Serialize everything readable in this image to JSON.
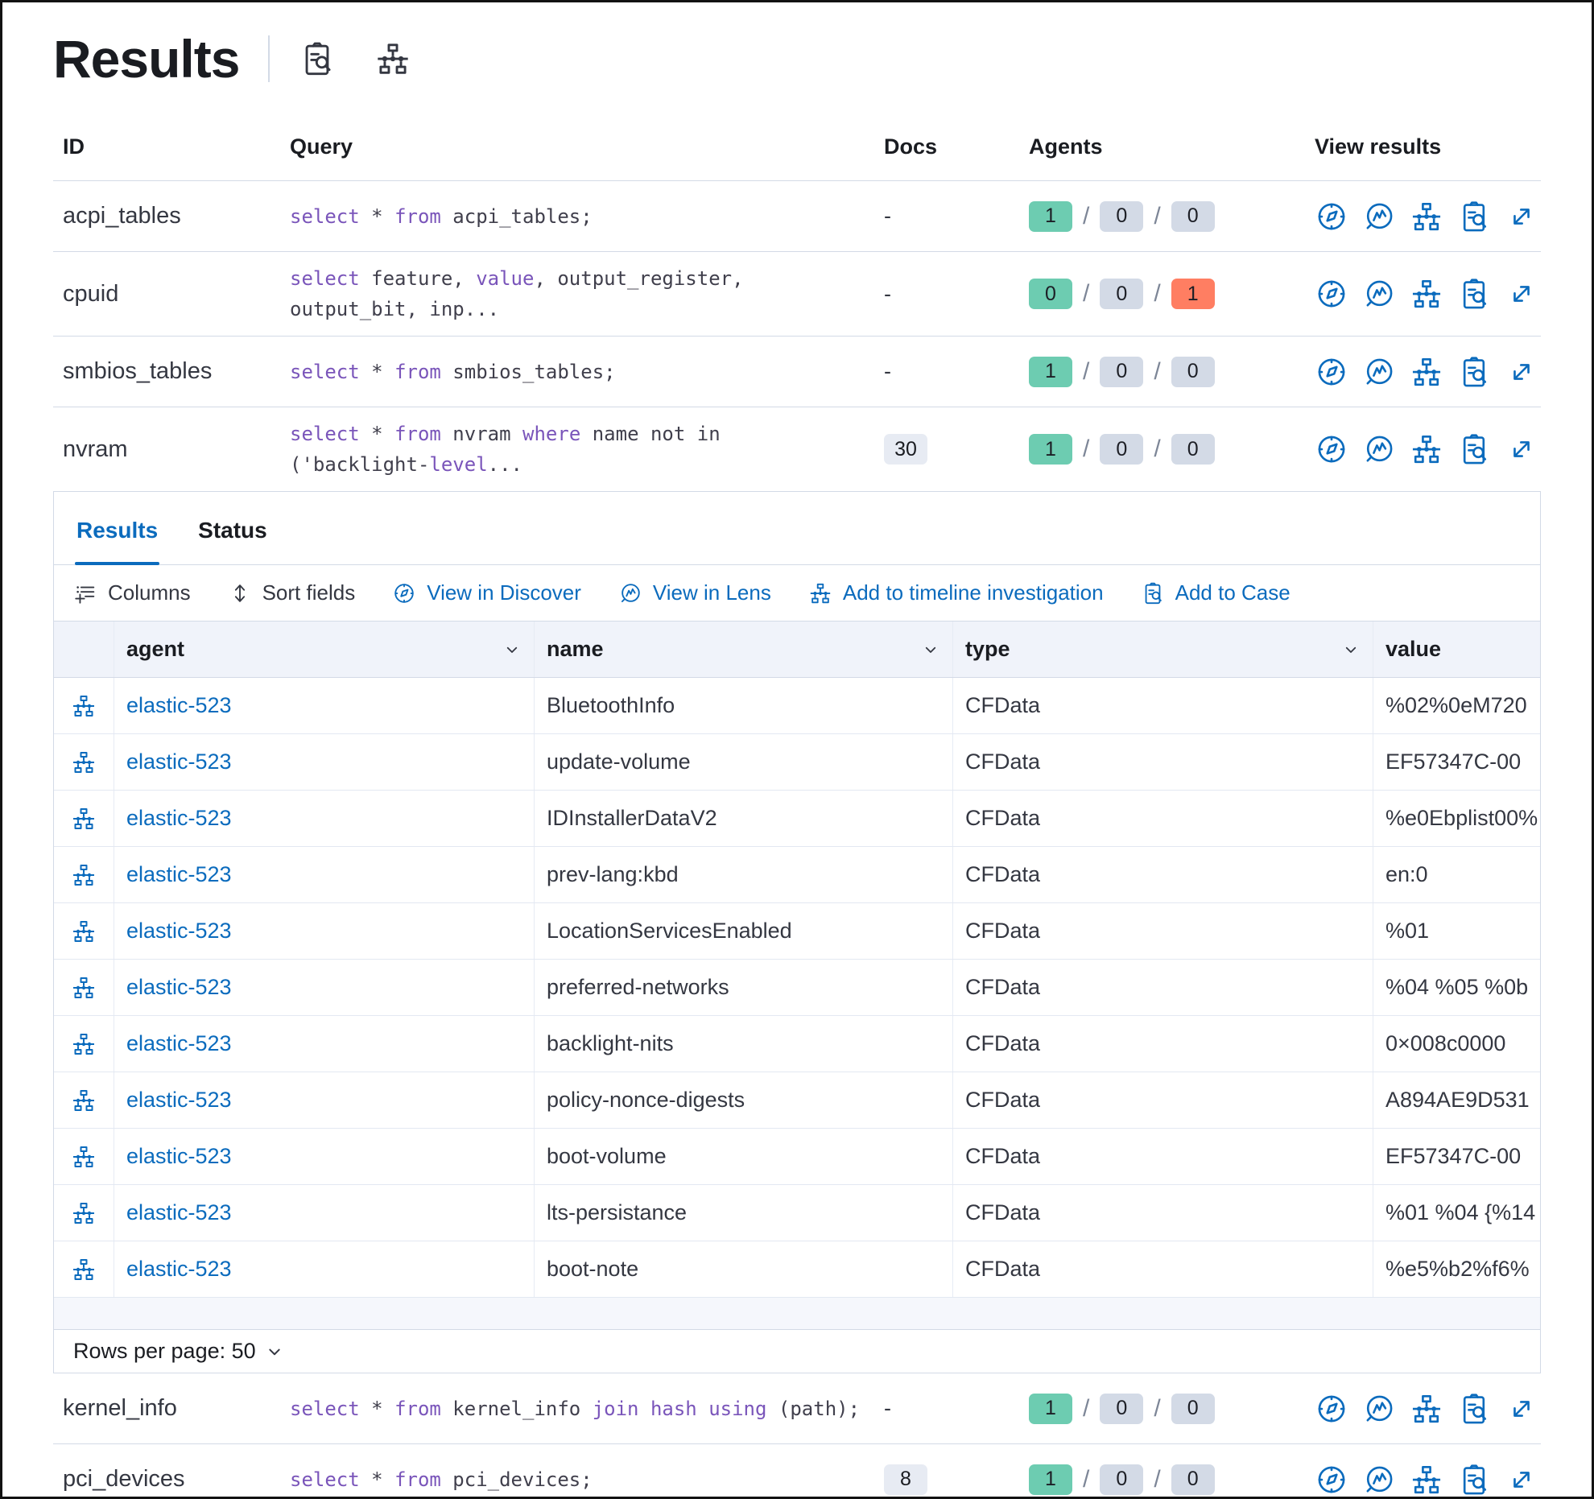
{
  "colors": {
    "primary": "#0b6bbd",
    "text": "#343741",
    "heading": "#1a1c21",
    "subdued": "#69707d",
    "border": "#d3dae6",
    "border_light": "#e3e8f2",
    "grid_header_bg": "#f0f3fa",
    "strip_bg": "#f5f7fc",
    "keyword": "#7a55ba",
    "badge_success": "#6dccb1",
    "badge_neutral": "#d3dae6",
    "badge_danger": "#ff7e62",
    "badge_docs_bg": "#e7ebf3"
  },
  "icon_symbols": {
    "case-icon": "inspect-icon"
  },
  "page": {
    "title": "Results",
    "title_icons": [
      "inspect-icon",
      "timeline-icon"
    ]
  },
  "results_table": {
    "columns": {
      "id": "ID",
      "query": "Query",
      "docs": "Docs",
      "agents": "Agents",
      "view": "View results"
    },
    "view_actions": [
      "discover-icon",
      "lens-icon",
      "timeline-icon",
      "inspect-icon",
      "expand-icon"
    ],
    "rows": [
      {
        "id": "acpi_tables",
        "query": [
          [
            {
              "t": "select",
              "kw": true
            },
            {
              "t": " * "
            },
            {
              "t": "from",
              "kw": true
            },
            {
              "t": " acpi_tables;"
            }
          ]
        ],
        "docs": {
          "text": "-",
          "badge": false
        },
        "agents": {
          "success": "1",
          "pending": "0",
          "failed": "0",
          "failed_alert": false
        },
        "expanded": false
      },
      {
        "id": "cpuid",
        "query": [
          [
            {
              "t": "select",
              "kw": true
            },
            {
              "t": " feature, "
            },
            {
              "t": "value",
              "kw": true
            },
            {
              "t": ", output_register,"
            }
          ],
          [
            {
              "t": "output_bit, inp..."
            }
          ]
        ],
        "docs": {
          "text": "-",
          "badge": false
        },
        "agents": {
          "success": "0",
          "pending": "0",
          "failed": "1",
          "failed_alert": true
        },
        "expanded": false
      },
      {
        "id": "smbios_tables",
        "query": [
          [
            {
              "t": "select",
              "kw": true
            },
            {
              "t": " * "
            },
            {
              "t": "from",
              "kw": true
            },
            {
              "t": " smbios_tables;"
            }
          ]
        ],
        "docs": {
          "text": "-",
          "badge": false
        },
        "agents": {
          "success": "1",
          "pending": "0",
          "failed": "0",
          "failed_alert": false
        },
        "expanded": false
      },
      {
        "id": "nvram",
        "query": [
          [
            {
              "t": "select",
              "kw": true
            },
            {
              "t": " * "
            },
            {
              "t": "from",
              "kw": true
            },
            {
              "t": " nvram "
            },
            {
              "t": "where",
              "kw": true
            },
            {
              "t": " name not in"
            }
          ],
          [
            {
              "t": "('backlight-"
            },
            {
              "t": "level",
              "kw": true
            },
            {
              "t": "..."
            }
          ]
        ],
        "docs": {
          "text": "30",
          "badge": true
        },
        "agents": {
          "success": "1",
          "pending": "0",
          "failed": "0",
          "failed_alert": false
        },
        "expanded": true
      },
      {
        "id": "kernel_info",
        "query": [
          [
            {
              "t": "select",
              "kw": true
            },
            {
              "t": " * "
            },
            {
              "t": "from",
              "kw": true
            },
            {
              "t": " kernel_info "
            },
            {
              "t": "join",
              "kw": true
            },
            {
              "t": " "
            },
            {
              "t": "hash",
              "kw": true
            },
            {
              "t": " "
            },
            {
              "t": "using",
              "kw": true
            },
            {
              "t": " (path);"
            }
          ]
        ],
        "docs": {
          "text": "-",
          "badge": false
        },
        "agents": {
          "success": "1",
          "pending": "0",
          "failed": "0",
          "failed_alert": false
        },
        "expanded": false
      },
      {
        "id": "pci_devices",
        "query": [
          [
            {
              "t": "select",
              "kw": true
            },
            {
              "t": " * "
            },
            {
              "t": "from",
              "kw": true
            },
            {
              "t": " pci_devices;"
            }
          ]
        ],
        "docs": {
          "text": "8",
          "badge": true
        },
        "agents": {
          "success": "1",
          "pending": "0",
          "failed": "0",
          "failed_alert": false
        },
        "expanded": false
      }
    ]
  },
  "expanded_panel": {
    "parent_id": "nvram",
    "tabs": [
      {
        "label": "Results",
        "active": true
      },
      {
        "label": "Status",
        "active": false
      }
    ],
    "toolbar": [
      {
        "name": "columns-button",
        "label": "Columns",
        "icon": "columns-icon",
        "style": "default"
      },
      {
        "name": "sort-fields-button",
        "label": "Sort fields",
        "icon": "sort-icon",
        "style": "default"
      },
      {
        "name": "view-in-discover-button",
        "label": "View in Discover",
        "icon": "discover-icon",
        "style": "primary"
      },
      {
        "name": "view-in-lens-button",
        "label": "View in Lens",
        "icon": "lens-icon",
        "style": "primary"
      },
      {
        "name": "add-to-timeline-button",
        "label": "Add to timeline investigation",
        "icon": "timeline-icon",
        "style": "primary"
      },
      {
        "name": "add-to-case-button",
        "label": "Add to Case",
        "icon": "case-icon",
        "style": "primary"
      }
    ],
    "grid": {
      "columns": [
        {
          "label": "agent",
          "sortable": true
        },
        {
          "label": "name",
          "sortable": true
        },
        {
          "label": "type",
          "sortable": true
        },
        {
          "label": "value",
          "sortable": false
        }
      ],
      "rows": [
        {
          "agent": "elastic-523",
          "name": "BluetoothInfo",
          "type": "CFData",
          "value": "%02%0eM720"
        },
        {
          "agent": "elastic-523",
          "name": "update-volume",
          "type": "CFData",
          "value": "EF57347C-00"
        },
        {
          "agent": "elastic-523",
          "name": "IDInstallerDataV2",
          "type": "CFData",
          "value": "%e0Ebplist00%"
        },
        {
          "agent": "elastic-523",
          "name": "prev-lang:kbd",
          "type": "CFData",
          "value": "en:0"
        },
        {
          "agent": "elastic-523",
          "name": "LocationServicesEnabled",
          "type": "CFData",
          "value": "%01"
        },
        {
          "agent": "elastic-523",
          "name": "preferred-networks",
          "type": "CFData",
          "value": "%04 %05 %0b"
        },
        {
          "agent": "elastic-523",
          "name": "backlight-nits",
          "type": "CFData",
          "value": "0×008c0000"
        },
        {
          "agent": "elastic-523",
          "name": "policy-nonce-digests",
          "type": "CFData",
          "value": "A894AE9D531"
        },
        {
          "agent": "elastic-523",
          "name": "boot-volume",
          "type": "CFData",
          "value": "EF57347C-00"
        },
        {
          "agent": "elastic-523",
          "name": "lts-persistance",
          "type": "CFData",
          "value": "%01 %04 {%14"
        },
        {
          "agent": "elastic-523",
          "name": "boot-note",
          "type": "CFData",
          "value": "%e5%b2%f6%"
        }
      ]
    },
    "footer": {
      "rows_per_page": "Rows per page: 50"
    }
  }
}
